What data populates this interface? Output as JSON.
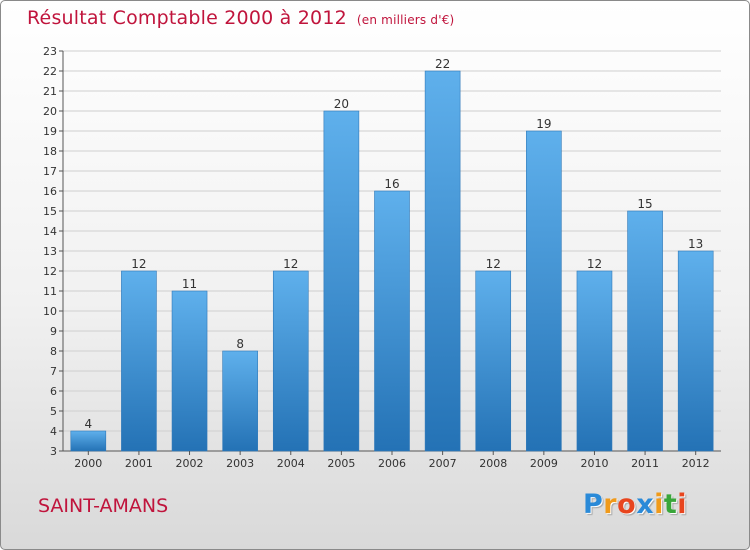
{
  "title": "Résultat Comptable 2000 à 2012",
  "subtitle": "(en milliers d'€)",
  "city": "SAINT-AMANS",
  "brand": {
    "letters": [
      "P",
      "r",
      "o",
      "x",
      "i",
      "t",
      "i"
    ],
    "colors": [
      "#2a8ad8",
      "#f09a1a",
      "#e8451e",
      "#2a8ad8",
      "#f09a1a",
      "#39a63a",
      "#e8451e"
    ]
  },
  "colors": {
    "title": "#c0143c",
    "bar_top": "#5fb0ec",
    "bar_bottom": "#2472b5",
    "grid": "#cfcfcf"
  },
  "chart_data": {
    "type": "bar",
    "title": "Résultat Comptable 2000 à 2012",
    "xlabel": "",
    "ylabel": "",
    "categories": [
      "2000",
      "2001",
      "2002",
      "2003",
      "2004",
      "2005",
      "2006",
      "2007",
      "2008",
      "2009",
      "2010",
      "2011",
      "2012"
    ],
    "values": [
      4,
      12,
      11,
      8,
      12,
      20,
      16,
      22,
      12,
      19,
      12,
      15,
      13
    ],
    "ylim": [
      3,
      23
    ],
    "yticks": [
      "3",
      "4",
      "5",
      "6",
      "7",
      "8",
      "9",
      "10",
      "11",
      "12",
      "13",
      "14",
      "15",
      "16",
      "17",
      "18",
      "19",
      "20",
      "21",
      "22",
      "23"
    ],
    "grid": true
  }
}
